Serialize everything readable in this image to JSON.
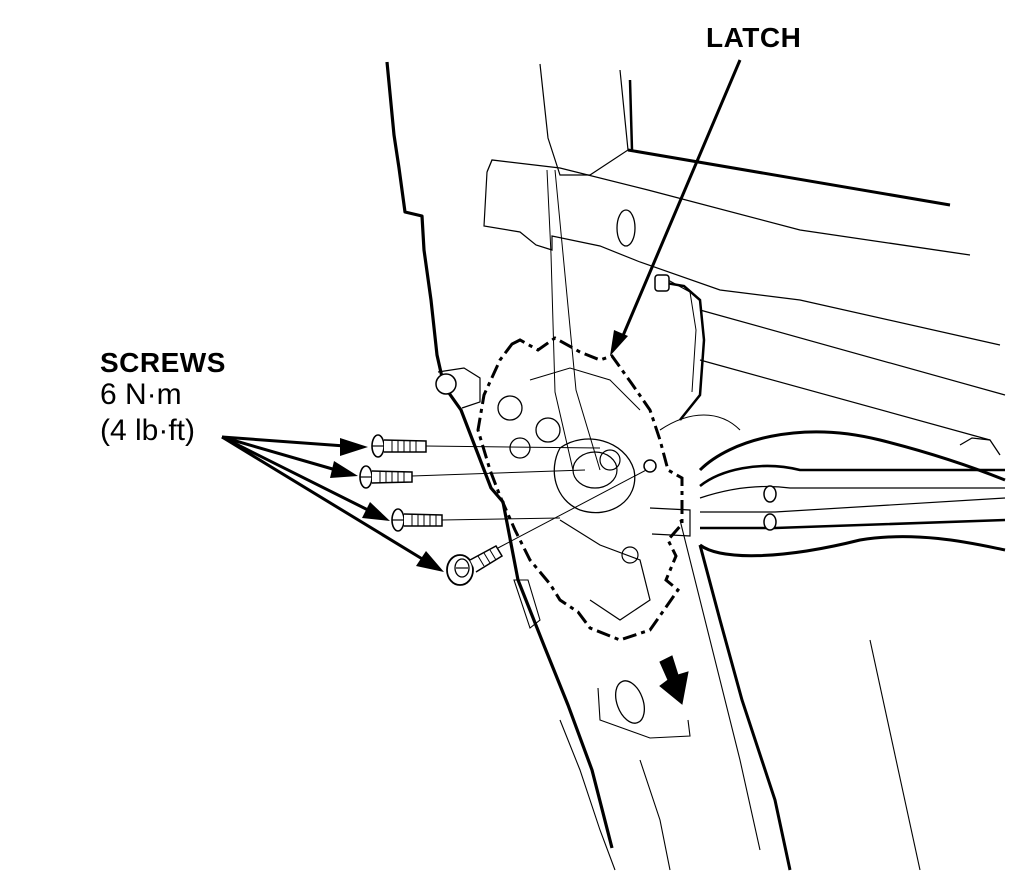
{
  "callouts": {
    "latch": "LATCH",
    "screws": "SCREWS",
    "torque_nm": "6 N·m",
    "torque_lbft": "(4 lb·ft)"
  },
  "colors": {
    "ink": "#000000",
    "paper": "#ffffff"
  }
}
